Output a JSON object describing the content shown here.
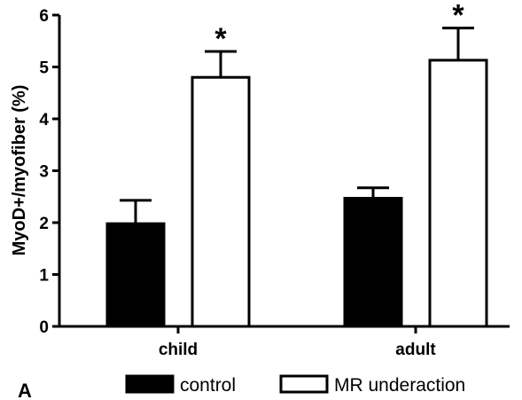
{
  "chart_data": {
    "type": "bar",
    "panel_label": "A",
    "ylabel": "MyoD+/myofiber (%)",
    "xlabel": "",
    "ylim": [
      0,
      6
    ],
    "yticks": [
      "0",
      "1",
      "2",
      "3",
      "4",
      "5",
      "6"
    ],
    "categories": [
      "child",
      "adult"
    ],
    "series": [
      {
        "name": "control",
        "values": [
          1.98,
          2.47
        ],
        "errors": [
          0.45,
          0.2
        ],
        "fill": "#000000"
      },
      {
        "name": "MR underaction",
        "values": [
          4.8,
          5.13
        ],
        "errors": [
          0.5,
          0.62
        ],
        "fill": "#ffffff"
      }
    ],
    "annotations": [
      {
        "series": 1,
        "category": 0,
        "text": "*"
      },
      {
        "series": 1,
        "category": 1,
        "text": "*"
      }
    ],
    "legend_position": "bottom",
    "grid": false
  }
}
